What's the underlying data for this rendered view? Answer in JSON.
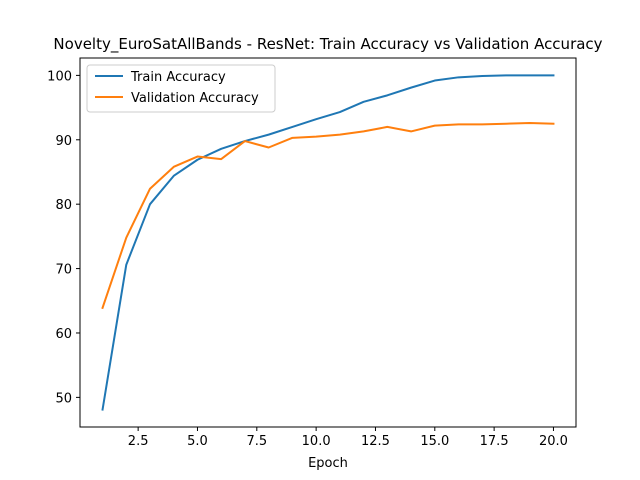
{
  "chart_data": {
    "type": "line",
    "title": "Novelty_EuroSatAllBands - ResNet: Train Accuracy vs Validation Accuracy",
    "xlabel": "Epoch",
    "ylabel": "",
    "xlim": [
      0.05,
      20.95
    ],
    "ylim": [
      45.4,
      102.7
    ],
    "xticks": [
      2.5,
      5.0,
      7.5,
      10.0,
      12.5,
      15.0,
      17.5,
      20.0
    ],
    "xtick_labels": [
      "2.5",
      "5.0",
      "7.5",
      "10.0",
      "12.5",
      "15.0",
      "17.5",
      "20.0"
    ],
    "yticks": [
      50,
      60,
      70,
      80,
      90,
      100
    ],
    "ytick_labels": [
      "50",
      "60",
      "70",
      "80",
      "90",
      "100"
    ],
    "grid": false,
    "legend_position": "upper-left",
    "x": [
      1,
      2,
      3,
      4,
      5,
      6,
      7,
      8,
      9,
      10,
      11,
      12,
      13,
      14,
      15,
      16,
      17,
      18,
      19,
      20
    ],
    "series": [
      {
        "name": "Train Accuracy",
        "color": "#1f77b4",
        "values": [
          48.1,
          70.6,
          80.0,
          84.4,
          86.9,
          88.6,
          89.8,
          90.8,
          92.0,
          93.2,
          94.3,
          95.9,
          96.9,
          98.1,
          99.2,
          99.7,
          99.9,
          100.0,
          100.0,
          100.0
        ]
      },
      {
        "name": "Validation Accuracy",
        "color": "#ff7f0e",
        "values": [
          63.9,
          74.8,
          82.4,
          85.8,
          87.4,
          87.0,
          89.8,
          88.8,
          90.3,
          90.5,
          90.8,
          91.3,
          92.0,
          91.3,
          92.2,
          92.4,
          92.4,
          92.5,
          92.6,
          92.5
        ]
      }
    ]
  }
}
